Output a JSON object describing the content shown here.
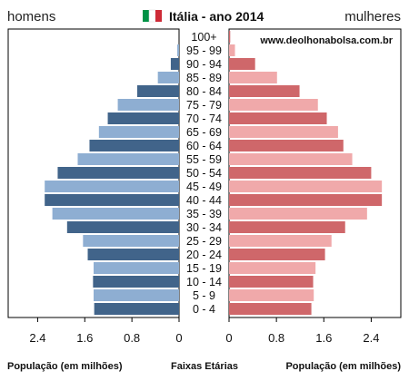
{
  "chart_data": {
    "type": "bar",
    "subtype": "population-pyramid",
    "title": "Itália - ano 2014",
    "flag": {
      "country": "Italy",
      "colors": [
        "#009246",
        "#ffffff",
        "#ce2b37"
      ]
    },
    "left_label": "homens",
    "right_label": "mulheres",
    "source_text": "www.deolhonabolsa.com.br",
    "xlabel_left": "População (em milhões)",
    "xlabel_center": "Faixas Etárias",
    "xlabel_right": "População (em milhões)",
    "xlim": [
      0,
      2.9
    ],
    "x_ticks": [
      0.0,
      0.8,
      1.6,
      2.4
    ],
    "x_tick_labels": [
      "0",
      "0.8",
      "1.6",
      "2.4"
    ],
    "categories": [
      "100+",
      "95 - 99",
      "90 - 94",
      "85 - 89",
      "80 - 84",
      "75 - 79",
      "70 - 74",
      "65 - 69",
      "60 - 64",
      "55 - 59",
      "50 - 54",
      "45 - 49",
      "40 - 44",
      "35 - 39",
      "30 - 34",
      "25 - 29",
      "20 - 24",
      "15 - 19",
      "10 - 14",
      "5 - 9",
      "0 - 4"
    ],
    "series": [
      {
        "name": "homens",
        "side": "left",
        "values": [
          0.0,
          0.03,
          0.14,
          0.36,
          0.71,
          1.04,
          1.21,
          1.36,
          1.52,
          1.72,
          2.06,
          2.28,
          2.28,
          2.15,
          1.9,
          1.63,
          1.55,
          1.45,
          1.46,
          1.45,
          1.44
        ],
        "colors": [
          "#41648a",
          "#8eaed2"
        ]
      },
      {
        "name": "mulheres",
        "side": "right",
        "values": [
          0.02,
          0.1,
          0.44,
          0.81,
          1.19,
          1.5,
          1.65,
          1.84,
          1.93,
          2.08,
          2.4,
          2.58,
          2.58,
          2.33,
          1.96,
          1.73,
          1.62,
          1.46,
          1.42,
          1.43,
          1.39
        ],
        "colors": [
          "#cf676a",
          "#f0a9aa"
        ]
      }
    ],
    "grid": false
  }
}
